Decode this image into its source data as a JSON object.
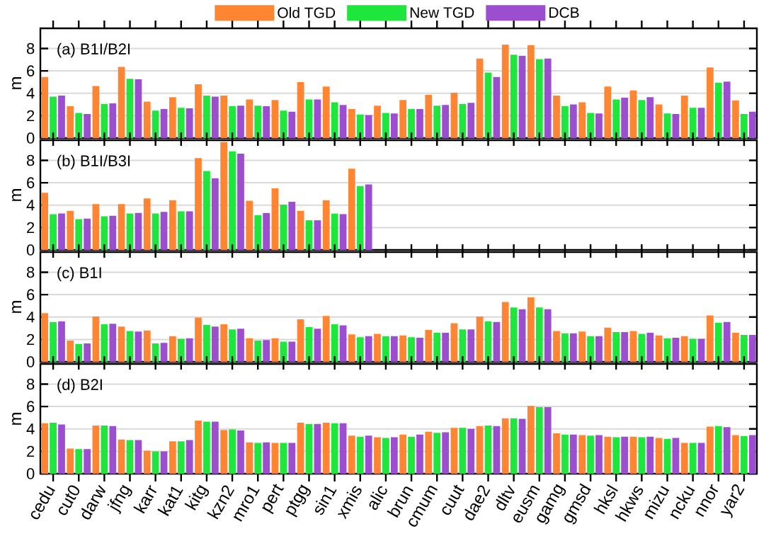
{
  "chart_data": [
    {
      "type": "bar",
      "title": "(a) B1I/B2I",
      "ylabel": "m",
      "categories": [
        null,
        null,
        null,
        null,
        null,
        null,
        null,
        null,
        null,
        null,
        null,
        null,
        null,
        null,
        null,
        null,
        null,
        null,
        null,
        null,
        null,
        null,
        null,
        null,
        null,
        null,
        null,
        null
      ],
      "ylim": [
        0,
        9.8
      ],
      "yticks": [
        0,
        2,
        4,
        6,
        8
      ],
      "grid": "y",
      "legend": "top",
      "tick_labels": "y",
      "series": [
        {
          "name": "Old TGD",
          "color": "#ff8533",
          "values": [
            5.45,
            2.85,
            4.65,
            6.35,
            3.25,
            3.65,
            4.8,
            3.8,
            3.45,
            3.4,
            5.0,
            4.6,
            2.6,
            2.9,
            3.4,
            3.85,
            4.05,
            7.1,
            8.35,
            8.3,
            3.8,
            3.2,
            4.6,
            4.25,
            3.0,
            3.8,
            6.3,
            3.35
          ]
        },
        {
          "name": "New TGD",
          "color": "#1ee63c",
          "values": [
            3.7,
            2.25,
            3.05,
            5.3,
            2.45,
            2.7,
            3.8,
            2.85,
            2.9,
            2.45,
            3.45,
            3.2,
            2.1,
            2.25,
            2.6,
            2.9,
            3.05,
            5.85,
            7.45,
            7.05,
            2.85,
            2.25,
            3.45,
            3.4,
            2.2,
            2.7,
            4.95,
            2.15
          ]
        },
        {
          "name": "DCB",
          "color": "#9b4fcf",
          "values": [
            3.8,
            2.15,
            3.1,
            5.25,
            2.6,
            2.65,
            3.7,
            2.9,
            2.85,
            2.35,
            3.45,
            2.95,
            2.05,
            2.2,
            2.6,
            2.95,
            3.15,
            5.45,
            7.35,
            7.1,
            3.0,
            2.2,
            3.6,
            3.65,
            2.15,
            2.7,
            5.05,
            2.35
          ]
        }
      ]
    },
    {
      "type": "bar",
      "title": "(b) B1I/B3I",
      "ylabel": "m",
      "categories": [
        null,
        null,
        null,
        null,
        null,
        null,
        null,
        null,
        null,
        null,
        null,
        null,
        null,
        null,
        null,
        null,
        null,
        null,
        null,
        null,
        null,
        null,
        null,
        null,
        null,
        null,
        null,
        null
      ],
      "ylim": [
        0,
        9.8
      ],
      "yticks": [
        0,
        2,
        4,
        6,
        8
      ],
      "grid": "y",
      "tick_labels": "y",
      "series": [
        {
          "color": "#ff8533",
          "values": [
            5.1,
            3.5,
            4.1,
            4.1,
            4.6,
            4.45,
            8.2,
            9.65,
            4.4,
            5.5,
            3.5,
            4.45,
            7.25,
            null,
            null,
            null,
            null,
            null,
            null,
            null,
            null,
            null,
            null,
            null,
            null,
            null,
            null,
            null
          ]
        },
        {
          "color": "#1ee63c",
          "values": [
            3.2,
            2.75,
            3.0,
            3.25,
            3.25,
            3.45,
            7.05,
            8.8,
            3.1,
            4.05,
            2.65,
            3.25,
            5.7,
            null,
            null,
            null,
            null,
            null,
            null,
            null,
            null,
            null,
            null,
            null,
            null,
            null,
            null,
            null
          ]
        },
        {
          "color": "#9b4fcf",
          "values": [
            3.25,
            2.8,
            3.05,
            3.3,
            3.4,
            3.45,
            6.4,
            8.6,
            3.3,
            4.3,
            2.65,
            3.2,
            5.85,
            null,
            null,
            null,
            null,
            null,
            null,
            null,
            null,
            null,
            null,
            null,
            null,
            null,
            null,
            null
          ]
        }
      ]
    },
    {
      "type": "bar",
      "title": "(c) B1I",
      "ylabel": "m",
      "categories": [
        null,
        null,
        null,
        null,
        null,
        null,
        null,
        null,
        null,
        null,
        null,
        null,
        null,
        null,
        null,
        null,
        null,
        null,
        null,
        null,
        null,
        null,
        null,
        null,
        null,
        null,
        null,
        null
      ],
      "ylim": [
        0,
        9.8
      ],
      "yticks": [
        0,
        2,
        4,
        6,
        8
      ],
      "grid": "y",
      "tick_labels": "y",
      "series": [
        {
          "color": "#ff8533",
          "values": [
            4.35,
            1.9,
            4.05,
            3.15,
            2.8,
            2.3,
            3.95,
            3.35,
            2.1,
            2.1,
            3.8,
            4.1,
            2.45,
            2.5,
            2.35,
            2.85,
            3.45,
            4.05,
            5.35,
            5.75,
            2.75,
            2.7,
            3.05,
            2.75,
            2.35,
            2.3,
            4.15,
            2.6
          ]
        },
        {
          "color": "#1ee63c",
          "values": [
            3.55,
            1.6,
            3.35,
            2.75,
            1.65,
            2.05,
            3.3,
            2.9,
            1.9,
            1.8,
            3.1,
            3.35,
            2.2,
            2.3,
            2.2,
            2.6,
            2.9,
            3.6,
            4.85,
            4.85,
            2.55,
            2.3,
            2.65,
            2.5,
            2.1,
            2.05,
            3.5,
            2.4
          ]
        },
        {
          "color": "#9b4fcf",
          "values": [
            3.6,
            1.65,
            3.4,
            2.7,
            1.7,
            2.1,
            3.15,
            2.95,
            1.95,
            1.8,
            2.95,
            3.25,
            2.3,
            2.3,
            2.15,
            2.6,
            2.9,
            3.55,
            4.7,
            4.7,
            2.55,
            2.3,
            2.65,
            2.6,
            2.15,
            2.05,
            3.55,
            2.4
          ]
        }
      ]
    },
    {
      "type": "bar",
      "title": "(d) B2I",
      "ylabel": "m",
      "categories": [
        "cedu",
        "cut0",
        "darw",
        "jfng",
        "karr",
        "kat1",
        "kitg",
        "kzn2",
        "mro1",
        "pert",
        "ptgg",
        "sin1",
        "xmis",
        "alic",
        "brun",
        "cmum",
        "cuut",
        "dae2",
        "dltv",
        "eusm",
        "gamg",
        "gmsd",
        "hksl",
        "hkws",
        "mizu",
        "ncku",
        "nnor",
        "yar2"
      ],
      "ylim": [
        0,
        9.8
      ],
      "yticks": [
        0,
        2,
        4,
        6,
        8
      ],
      "grid": "y",
      "series": [
        {
          "color": "#ff8533",
          "values": [
            4.5,
            2.25,
            4.3,
            3.05,
            2.05,
            2.9,
            4.75,
            3.9,
            2.8,
            2.75,
            4.55,
            4.55,
            3.4,
            3.25,
            3.5,
            3.75,
            4.1,
            4.25,
            4.95,
            6.05,
            3.6,
            3.45,
            3.3,
            3.3,
            3.2,
            2.75,
            4.2,
            3.45
          ]
        },
        {
          "color": "#1ee63c",
          "values": [
            4.55,
            2.2,
            4.3,
            3.0,
            2.0,
            2.9,
            4.65,
            3.95,
            2.75,
            2.75,
            4.45,
            4.5,
            3.3,
            3.2,
            3.3,
            3.65,
            4.1,
            4.3,
            4.95,
            5.95,
            3.5,
            3.4,
            3.25,
            3.25,
            3.1,
            2.75,
            4.25,
            3.35
          ]
        },
        {
          "color": "#9b4fcf",
          "values": [
            4.4,
            2.2,
            4.25,
            3.0,
            2.0,
            3.0,
            4.65,
            3.85,
            2.8,
            2.75,
            4.45,
            4.5,
            3.4,
            3.25,
            3.5,
            3.7,
            4.0,
            4.25,
            4.9,
            5.95,
            3.5,
            3.45,
            3.3,
            3.3,
            3.2,
            2.75,
            4.15,
            3.45
          ]
        }
      ]
    }
  ]
}
